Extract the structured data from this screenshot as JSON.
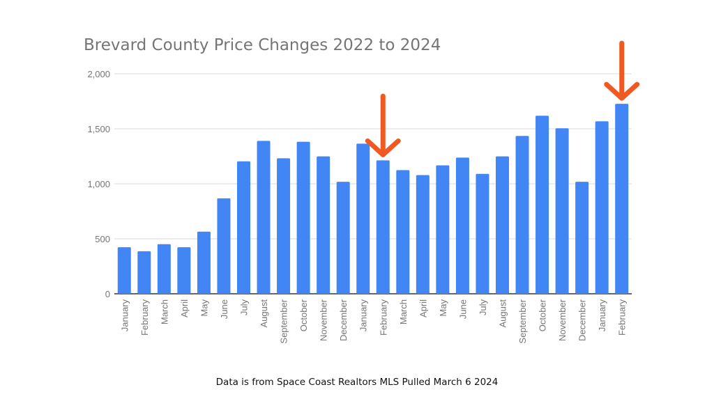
{
  "chart_data": {
    "type": "bar",
    "title": "Brevard County Price Changes 2022 to 2024",
    "xlabel": "",
    "ylabel": "",
    "ylim": [
      0,
      2000
    ],
    "yticks": [
      "0",
      "500",
      "1,000",
      "1,500",
      "2,000"
    ],
    "ytick_values": [
      0,
      500,
      1000,
      1500,
      2000
    ],
    "grid": true,
    "categories": [
      "January",
      "February",
      "March",
      "April",
      "May",
      "June",
      "July",
      "August",
      "September",
      "October",
      "November",
      "December",
      "January",
      "February",
      "March",
      "April",
      "May",
      "June",
      "July",
      "August",
      "September",
      "October",
      "November",
      "December",
      "January",
      "February"
    ],
    "values": [
      423,
      387,
      451,
      423,
      565,
      868,
      1204,
      1390,
      1232,
      1382,
      1249,
      1018,
      1365,
      1213,
      1124,
      1079,
      1168,
      1238,
      1090,
      1249,
      1435,
      1619,
      1505,
      1018,
      1568,
      1727
    ],
    "bar_color": "#4285F4",
    "annotations": [
      {
        "type": "arrow",
        "target_index": 13,
        "color": "#F05A22"
      },
      {
        "type": "arrow",
        "target_index": 25,
        "color": "#F05A22"
      }
    ]
  },
  "footer": "Data is from Space Coast Realtors MLS Pulled March 6 2024"
}
